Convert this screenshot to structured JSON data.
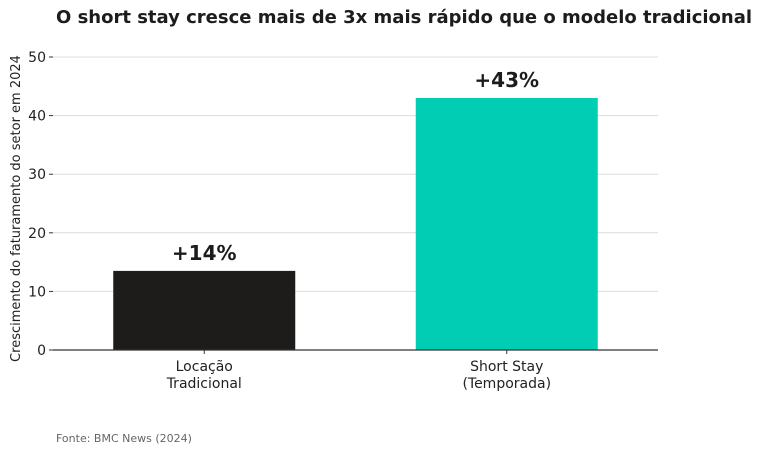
{
  "chart_data": {
    "type": "bar",
    "title": "O short stay cresce mais de 3x mais rápido que o modelo tradicional",
    "ylabel": "Crescimento do faturamento do setor em 2024",
    "xlabel": "",
    "categories": [
      [
        "Locação",
        "Tradicional"
      ],
      [
        "Short Stay",
        "(Temporada)"
      ]
    ],
    "values": [
      13.5,
      43
    ],
    "data_labels": [
      "+14%",
      "+43%"
    ],
    "ylim": [
      0,
      50
    ],
    "yticks": [
      0,
      10,
      20,
      30,
      40,
      50
    ],
    "grid": "horizontal",
    "colors": [
      "#1e1c1a",
      "#00cdb4"
    ]
  },
  "footer": {
    "source": "Fonte: BMC News (2024)"
  }
}
